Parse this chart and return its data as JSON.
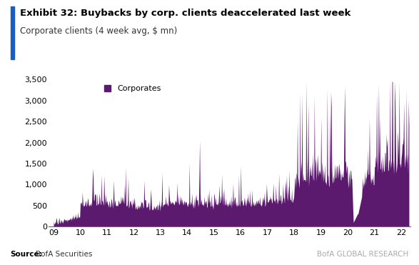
{
  "title": "Exhibit 32: Buybacks by corp. clients deaccelerated last week",
  "subtitle": "Corporate clients (4 week avg, $ mn)",
  "legend_label": "Corporates",
  "fill_color": "#5c1a6e",
  "source_bold": "Source:",
  "source_rest": " BofA Securities",
  "branding_text": "BofA GLOBAL RESEARCH",
  "ylim": [
    0,
    3500
  ],
  "yticks": [
    0,
    500,
    1000,
    1500,
    2000,
    2500,
    3000,
    3500
  ],
  "xtick_labels": [
    "09",
    "10",
    "11",
    "12",
    "13",
    "14",
    "15",
    "16",
    "17",
    "18",
    "19",
    "20",
    "21",
    "22"
  ],
  "title_bar_color": "#1a5cbf",
  "background_color": "#ffffff",
  "title_fontsize": 9.5,
  "subtitle_fontsize": 8.5,
  "tick_fontsize": 8,
  "source_fontsize": 7.5,
  "brand_fontsize": 7.5
}
